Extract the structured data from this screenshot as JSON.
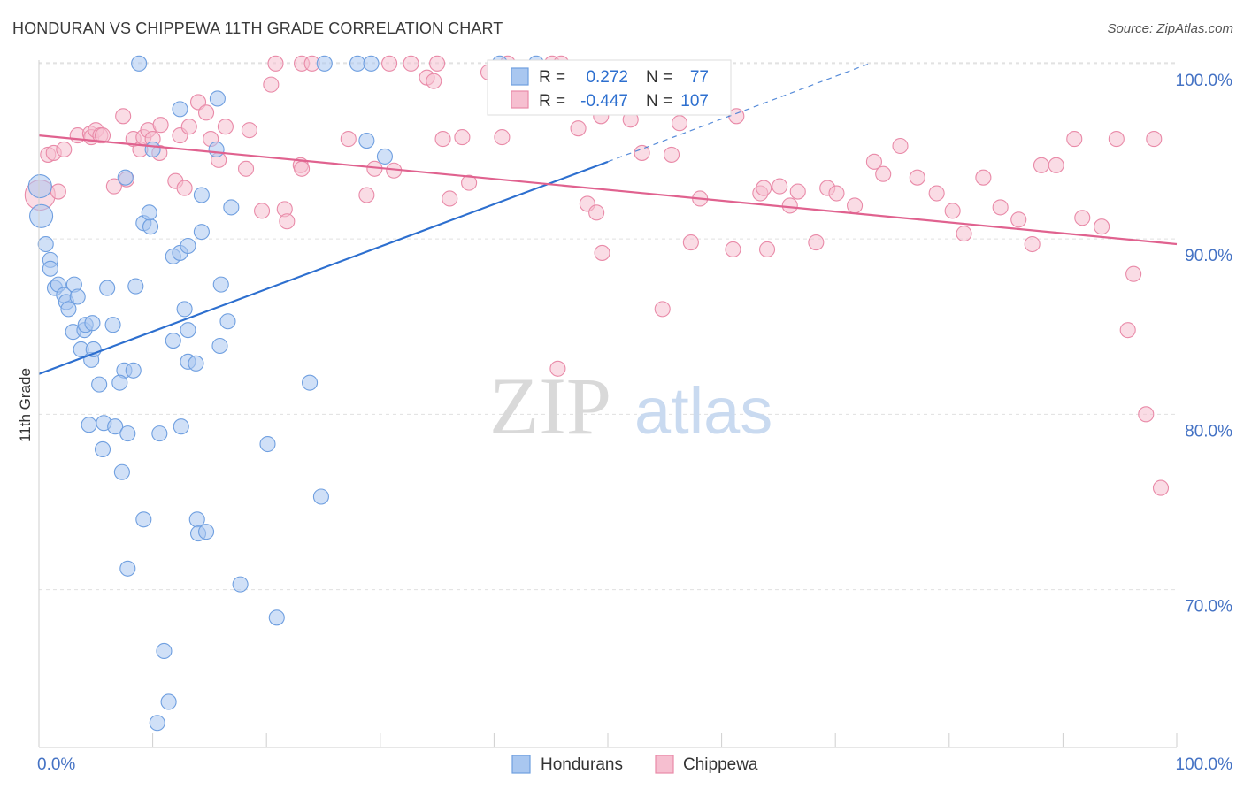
{
  "header": {
    "title": "HONDURAN VS CHIPPEWA 11TH GRADE CORRELATION CHART",
    "source": "Source: ZipAtlas.com"
  },
  "watermark": {
    "zip": "ZIP",
    "atlas": "atlas"
  },
  "legend_box": {
    "rows": [
      {
        "r_label": "R =",
        "r_value": "0.272",
        "n_label": "N =",
        "n_value": "77"
      },
      {
        "r_label": "R =",
        "r_value": "-0.447",
        "n_label": "N =",
        "n_value": "107"
      }
    ]
  },
  "colors": {
    "blue_fill": "#a9c7f0",
    "blue_stroke": "#6f9fe0",
    "blue_line": "#2d6fcf",
    "pink_fill": "#f6bfd0",
    "pink_stroke": "#e98aa8",
    "pink_line": "#e0628f",
    "axis_text": "#4472c4",
    "grid": "#e0e0e0"
  },
  "chart_data": {
    "type": "scatter",
    "title": "HONDURAN VS CHIPPEWA 11TH GRADE CORRELATION CHART",
    "xlabel": "",
    "ylabel": "11th Grade",
    "xlim": [
      0,
      100
    ],
    "ylim": [
      61,
      101
    ],
    "x_tick_labels": [
      "0.0%",
      "100.0%"
    ],
    "y_ticks": [
      70,
      80,
      90,
      100
    ],
    "y_tick_labels": [
      "70.0%",
      "80.0%",
      "90.0%",
      "100.0%"
    ],
    "grid": true,
    "legend_position": "bottom-center",
    "series": [
      {
        "name": "Hondurans",
        "r": 0.272,
        "n": 77,
        "trend": {
          "x0": 0,
          "y0": 82.3,
          "x1": 50,
          "y1": 94.4,
          "dash_to_x": 73,
          "dash_to_y": 100
        },
        "points": [
          [
            0.1,
            93.0
          ],
          [
            0.2,
            91.3
          ],
          [
            0.6,
            89.7
          ],
          [
            1.0,
            88.8
          ],
          [
            1.0,
            88.3
          ],
          [
            1.4,
            87.2
          ],
          [
            1.7,
            87.4
          ],
          [
            2.2,
            86.8
          ],
          [
            2.4,
            86.4
          ],
          [
            3.1,
            87.4
          ],
          [
            2.6,
            86.0
          ],
          [
            3.4,
            86.7
          ],
          [
            3.0,
            84.7
          ],
          [
            4.0,
            84.8
          ],
          [
            4.1,
            85.1
          ],
          [
            4.7,
            85.2
          ],
          [
            3.7,
            83.7
          ],
          [
            4.6,
            83.1
          ],
          [
            4.8,
            83.7
          ],
          [
            6.5,
            85.1
          ],
          [
            6.0,
            87.2
          ],
          [
            8.5,
            87.3
          ],
          [
            7.5,
            82.5
          ],
          [
            8.3,
            82.5
          ],
          [
            5.3,
            81.7
          ],
          [
            7.1,
            81.8
          ],
          [
            4.4,
            79.4
          ],
          [
            5.7,
            79.5
          ],
          [
            6.7,
            79.3
          ],
          [
            7.8,
            78.9
          ],
          [
            5.6,
            78.0
          ],
          [
            7.3,
            76.7
          ],
          [
            10.6,
            78.9
          ],
          [
            12.5,
            79.3
          ],
          [
            15.9,
            83.9
          ],
          [
            13.1,
            83.0
          ],
          [
            13.8,
            82.9
          ],
          [
            14.3,
            90.4
          ],
          [
            11.8,
            89.0
          ],
          [
            12.4,
            89.2
          ],
          [
            13.1,
            89.6
          ],
          [
            9.2,
            90.9
          ],
          [
            9.8,
            90.7
          ],
          [
            9.7,
            91.5
          ],
          [
            10.0,
            95.1
          ],
          [
            12.8,
            86.0
          ],
          [
            11.8,
            84.2
          ],
          [
            13.1,
            84.8
          ],
          [
            16.6,
            85.3
          ],
          [
            16.0,
            87.4
          ],
          [
            14.3,
            92.5
          ],
          [
            16.9,
            91.8
          ],
          [
            15.6,
            95.1
          ],
          [
            15.7,
            98.0
          ],
          [
            12.4,
            97.4
          ],
          [
            7.6,
            93.5
          ],
          [
            8.8,
            100.0
          ],
          [
            9.2,
            74.0
          ],
          [
            13.9,
            74.0
          ],
          [
            14.0,
            73.2
          ],
          [
            14.7,
            73.3
          ],
          [
            7.8,
            71.2
          ],
          [
            17.7,
            70.3
          ],
          [
            20.9,
            68.4
          ],
          [
            11.0,
            66.5
          ],
          [
            11.4,
            63.6
          ],
          [
            10.4,
            62.4
          ],
          [
            20.1,
            78.3
          ],
          [
            23.8,
            81.8
          ],
          [
            24.8,
            75.3
          ],
          [
            25.1,
            100.0
          ],
          [
            28.0,
            100.0
          ],
          [
            29.2,
            100.0
          ],
          [
            40.5,
            100.0
          ],
          [
            43.7,
            100.0
          ],
          [
            28.8,
            95.6
          ],
          [
            30.4,
            94.7
          ]
        ]
      },
      {
        "name": "Chippewa",
        "r": -0.447,
        "n": 107,
        "trend": {
          "x0": 0,
          "y0": 95.9,
          "x1": 100,
          "y1": 89.7
        },
        "points": [
          [
            0.1,
            92.5
          ],
          [
            0.8,
            94.8
          ],
          [
            1.3,
            94.9
          ],
          [
            2.2,
            95.1
          ],
          [
            3.4,
            95.9
          ],
          [
            4.5,
            96.0
          ],
          [
            4.6,
            95.8
          ],
          [
            5.0,
            96.2
          ],
          [
            5.4,
            95.9
          ],
          [
            5.6,
            95.9
          ],
          [
            1.7,
            92.7
          ],
          [
            6.6,
            93.0
          ],
          [
            7.7,
            93.4
          ],
          [
            7.4,
            97.0
          ],
          [
            8.3,
            95.7
          ],
          [
            8.9,
            95.1
          ],
          [
            9.2,
            95.8
          ],
          [
            9.6,
            96.2
          ],
          [
            10.0,
            95.7
          ],
          [
            10.6,
            94.9
          ],
          [
            10.7,
            96.5
          ],
          [
            12.4,
            95.9
          ],
          [
            12.0,
            93.3
          ],
          [
            12.8,
            92.9
          ],
          [
            13.2,
            96.4
          ],
          [
            14.0,
            97.8
          ],
          [
            14.7,
            97.2
          ],
          [
            15.1,
            95.7
          ],
          [
            15.8,
            94.5
          ],
          [
            16.4,
            96.4
          ],
          [
            18.2,
            94.0
          ],
          [
            18.5,
            96.2
          ],
          [
            19.6,
            91.6
          ],
          [
            21.6,
            91.7
          ],
          [
            21.8,
            91.0
          ],
          [
            23.0,
            94.2
          ],
          [
            23.1,
            94.0
          ],
          [
            20.4,
            98.8
          ],
          [
            20.8,
            100.0
          ],
          [
            23.1,
            100.0
          ],
          [
            24.0,
            100.0
          ],
          [
            27.2,
            95.7
          ],
          [
            28.8,
            92.5
          ],
          [
            29.5,
            94.0
          ],
          [
            31.2,
            93.9
          ],
          [
            30.8,
            100.0
          ],
          [
            32.7,
            100.0
          ],
          [
            34.1,
            99.2
          ],
          [
            34.7,
            99.0
          ],
          [
            35.5,
            95.7
          ],
          [
            36.1,
            92.3
          ],
          [
            37.2,
            95.8
          ],
          [
            37.8,
            93.2
          ],
          [
            35.0,
            100.0
          ],
          [
            39.5,
            99.5
          ],
          [
            41.2,
            100.0
          ],
          [
            45.1,
            100.0
          ],
          [
            45.9,
            100.0
          ],
          [
            48.8,
            99.2
          ],
          [
            47.4,
            96.3
          ],
          [
            48.2,
            92.0
          ],
          [
            49.0,
            91.5
          ],
          [
            49.4,
            97.0
          ],
          [
            52.0,
            96.8
          ],
          [
            53.0,
            94.9
          ],
          [
            55.6,
            94.8
          ],
          [
            56.3,
            96.6
          ],
          [
            57.3,
            89.8
          ],
          [
            58.1,
            92.3
          ],
          [
            61.0,
            89.4
          ],
          [
            61.3,
            97.0
          ],
          [
            63.4,
            92.6
          ],
          [
            63.7,
            92.9
          ],
          [
            64.0,
            89.4
          ],
          [
            65.1,
            93.0
          ],
          [
            66.0,
            91.9
          ],
          [
            66.7,
            92.7
          ],
          [
            68.3,
            89.8
          ],
          [
            69.3,
            92.9
          ],
          [
            70.1,
            92.6
          ],
          [
            71.7,
            91.9
          ],
          [
            73.4,
            94.4
          ],
          [
            74.2,
            93.7
          ],
          [
            75.7,
            95.3
          ],
          [
            77.2,
            93.5
          ],
          [
            78.9,
            92.6
          ],
          [
            80.3,
            91.6
          ],
          [
            81.3,
            90.3
          ],
          [
            83.0,
            93.5
          ],
          [
            84.5,
            91.8
          ],
          [
            86.1,
            91.1
          ],
          [
            87.3,
            89.7
          ],
          [
            88.1,
            94.2
          ],
          [
            89.4,
            94.2
          ],
          [
            91.0,
            95.7
          ],
          [
            91.7,
            91.2
          ],
          [
            93.4,
            90.7
          ],
          [
            94.7,
            95.7
          ],
          [
            95.7,
            84.8
          ],
          [
            96.2,
            88.0
          ],
          [
            98.0,
            95.7
          ],
          [
            97.3,
            80.0
          ],
          [
            98.6,
            75.8
          ],
          [
            40.7,
            95.8
          ],
          [
            45.6,
            82.6
          ],
          [
            49.5,
            89.2
          ],
          [
            54.8,
            86.0
          ]
        ]
      }
    ]
  }
}
